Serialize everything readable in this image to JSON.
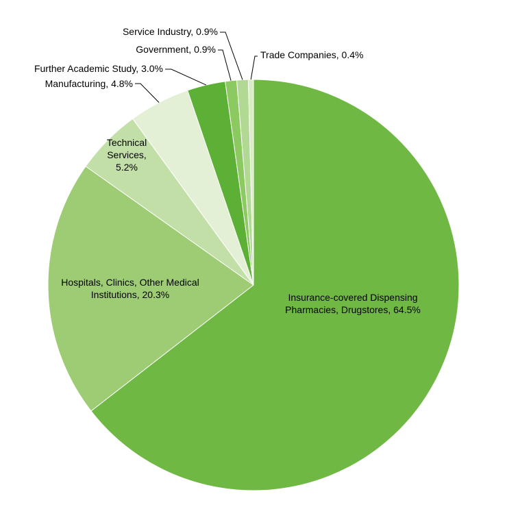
{
  "chart_data": {
    "type": "pie",
    "slices": [
      {
        "label_lines": [
          "Insurance-covered  Dispensing",
          "Pharmacies, Drugstores, 64.5%"
        ],
        "value": 64.5,
        "color": "#70b844"
      },
      {
        "label_lines": [
          "Hospitals, Clinics, Other Medical",
          "Institutions,  20.3%"
        ],
        "value": 20.3,
        "color": "#9dcc74"
      },
      {
        "label_lines": [
          "Technical",
          "Services,",
          "5.2%"
        ],
        "value": 5.2,
        "color": "#c3dfa8"
      },
      {
        "label_lines": [
          "Manufacturing,  4.8%"
        ],
        "value": 4.8,
        "color": "#e3f0d6"
      },
      {
        "label_lines": [
          "Further Academic Study, 3.0%"
        ],
        "value": 3.0,
        "color": "#5cb036"
      },
      {
        "label_lines": [
          "Government,  0.9%"
        ],
        "value": 0.9,
        "color": "#8cc960"
      },
      {
        "label_lines": [
          "Service Industry,  0.9%"
        ],
        "value": 0.9,
        "color": "#b2d993"
      },
      {
        "label_lines": [
          "Trade Companies, 0.4%"
        ],
        "value": 0.4,
        "color": "#d8ecc6"
      }
    ]
  }
}
